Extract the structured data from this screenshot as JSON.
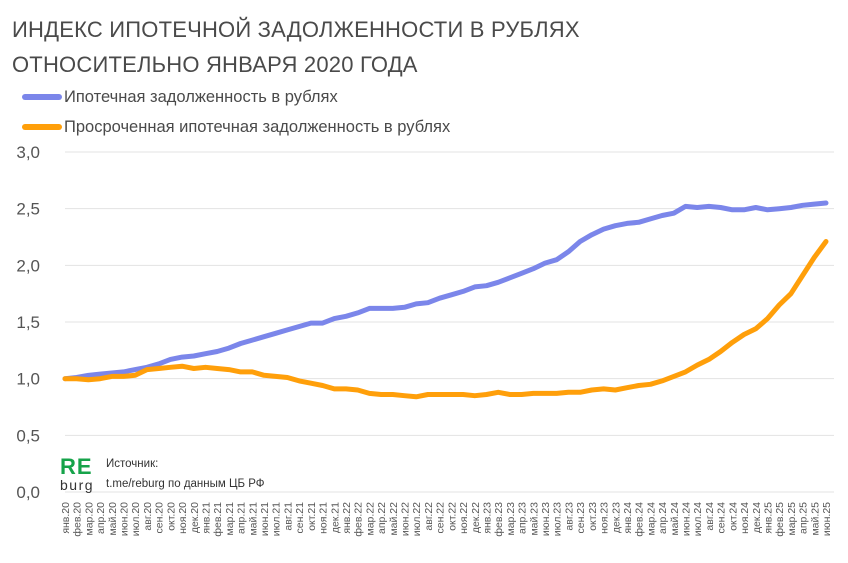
{
  "header": {
    "title_line1": "ИНДЕКС ИПОТЕЧНОЙ ЗАДОЛЖЕННОСТИ В РУБЛЯХ",
    "title_line2": "ОТНОСИТЕЛЬНО ЯНВАРЯ 2020 ГОДА"
  },
  "source": {
    "label": "Источник:",
    "text": "t.me/reburg по данным  ЦБ РФ"
  },
  "logo": {
    "top": "RE",
    "bottom": "burg"
  },
  "chart_data": {
    "type": "line",
    "title": "ИНДЕКС ИПОТЕЧНОЙ ЗАДОЛЖЕННОСТИ В РУБЛЯХ ОТНОСИТЕЛЬНО ЯНВАРЯ 2020 ГОДА",
    "xlabel": "",
    "ylabel": "",
    "ylim": [
      0,
      3
    ],
    "yticks": [
      "0,0",
      "0,5",
      "1,0",
      "1,5",
      "2,0",
      "2,5",
      "3,0"
    ],
    "grid": true,
    "legend_position": "top-left",
    "categories": [
      "янв.20",
      "фев.20",
      "мар.20",
      "апр.20",
      "май.20",
      "июн.20",
      "июл.20",
      "авг.20",
      "сен.20",
      "окт.20",
      "ноя.20",
      "дек.20",
      "янв.21",
      "фев.21",
      "мар.21",
      "апр.21",
      "май.21",
      "июн.21",
      "июл.21",
      "авг.21",
      "сен.21",
      "окт.21",
      "ноя.21",
      "дек.21",
      "янв.22",
      "фев.22",
      "мар.22",
      "апр.22",
      "май.22",
      "июн.22",
      "июл.22",
      "авг.22",
      "сен.22",
      "окт.22",
      "ноя.22",
      "дек.22",
      "янв.23",
      "фев.23",
      "мар.23",
      "апр.23",
      "май.23",
      "июн.23",
      "июл.23",
      "авг.23",
      "сен.23",
      "окт.23",
      "ноя.23",
      "дек.23",
      "янв.24",
      "фев.24",
      "мар.24",
      "апр.24",
      "май.24",
      "июн.24",
      "июл.24",
      "авг.24",
      "сен.24",
      "окт.24",
      "ноя.24",
      "дек.24",
      "янв.25",
      "фев.25",
      "мар.25",
      "апр.25",
      "май.25",
      "июн.25"
    ],
    "series": [
      {
        "name": "Ипотечная задолженность в рублях",
        "color": "#7b86ea",
        "values": [
          1.0,
          1.01,
          1.03,
          1.04,
          1.05,
          1.06,
          1.08,
          1.1,
          1.13,
          1.17,
          1.19,
          1.2,
          1.22,
          1.24,
          1.27,
          1.31,
          1.34,
          1.37,
          1.4,
          1.43,
          1.46,
          1.49,
          1.49,
          1.53,
          1.55,
          1.58,
          1.62,
          1.62,
          1.62,
          1.63,
          1.66,
          1.67,
          1.71,
          1.74,
          1.77,
          1.81,
          1.82,
          1.85,
          1.89,
          1.93,
          1.97,
          2.02,
          2.05,
          2.12,
          2.21,
          2.27,
          2.32,
          2.35,
          2.37,
          2.38,
          2.41,
          2.44,
          2.46,
          2.52,
          2.51,
          2.52,
          2.51,
          2.49,
          2.49,
          2.51,
          2.49,
          2.5,
          2.51,
          2.53,
          2.54,
          2.55
        ]
      },
      {
        "name": "Просроченная ипотечная задолженность в рублях",
        "color": "#ff9f0a",
        "values": [
          1.0,
          1.0,
          0.99,
          1.0,
          1.02,
          1.02,
          1.03,
          1.08,
          1.09,
          1.1,
          1.11,
          1.09,
          1.1,
          1.09,
          1.08,
          1.06,
          1.06,
          1.03,
          1.02,
          1.01,
          0.98,
          0.96,
          0.94,
          0.91,
          0.91,
          0.9,
          0.87,
          0.86,
          0.86,
          0.85,
          0.84,
          0.86,
          0.86,
          0.86,
          0.86,
          0.85,
          0.86,
          0.88,
          0.86,
          0.86,
          0.87,
          0.87,
          0.87,
          0.88,
          0.88,
          0.9,
          0.91,
          0.9,
          0.92,
          0.94,
          0.95,
          0.98,
          1.02,
          1.06,
          1.12,
          1.17,
          1.24,
          1.32,
          1.39,
          1.44,
          1.53,
          1.65,
          1.75,
          1.91,
          2.07,
          2.21
        ]
      }
    ]
  }
}
